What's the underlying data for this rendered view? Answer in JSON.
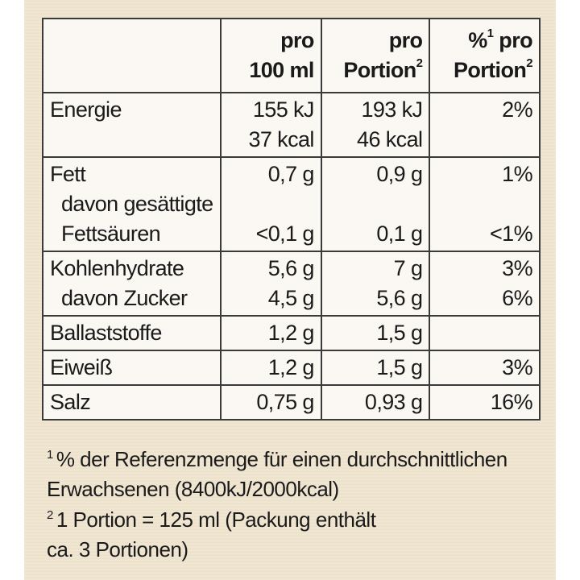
{
  "headers": {
    "col1": [
      "pro",
      "100 ml"
    ],
    "col2": [
      "pro",
      "Portion",
      "2"
    ],
    "col3": [
      "%",
      "1",
      "pro",
      "Portion",
      "2"
    ]
  },
  "rows": [
    {
      "name": [
        "Energie"
      ],
      "per100": [
        "155 kJ",
        "37 kcal"
      ],
      "perPortion": [
        "193 kJ",
        "46 kcal"
      ],
      "pct": [
        "2%"
      ]
    },
    {
      "name": [
        "Fett",
        "davon gesättigte",
        "Fettsäuren"
      ],
      "per100": [
        "0,7 g",
        "",
        "<0,1 g"
      ],
      "perPortion": [
        "0,9 g",
        "",
        "0,1 g"
      ],
      "pct": [
        "1%",
        "",
        "<1%"
      ]
    },
    {
      "name": [
        "Kohlenhydrate",
        "davon Zucker"
      ],
      "per100": [
        "5,6 g",
        "4,5 g"
      ],
      "perPortion": [
        "7 g",
        "5,6 g"
      ],
      "pct": [
        "3%",
        "6%"
      ]
    },
    {
      "name": [
        "Ballaststoffe"
      ],
      "per100": [
        "1,2 g"
      ],
      "perPortion": [
        "1,5 g"
      ],
      "pct": [
        ""
      ]
    },
    {
      "name": [
        "Eiweiß"
      ],
      "per100": [
        "1,2 g"
      ],
      "perPortion": [
        "1,5 g"
      ],
      "pct": [
        "3%"
      ]
    },
    {
      "name": [
        "Salz"
      ],
      "per100": [
        "0,75 g"
      ],
      "perPortion": [
        "0,93 g"
      ],
      "pct": [
        "16%"
      ]
    }
  ],
  "footnotes": [
    {
      "mark": "1",
      "lines": [
        "% der Referenzmenge für einen durchschnittlichen",
        "Erwachsenen (8400kJ/2000kcal)"
      ]
    },
    {
      "mark": "2",
      "lines": [
        "1 Portion = 125 ml (Packung enthält",
        "ca. 3 Portionen)"
      ]
    }
  ]
}
